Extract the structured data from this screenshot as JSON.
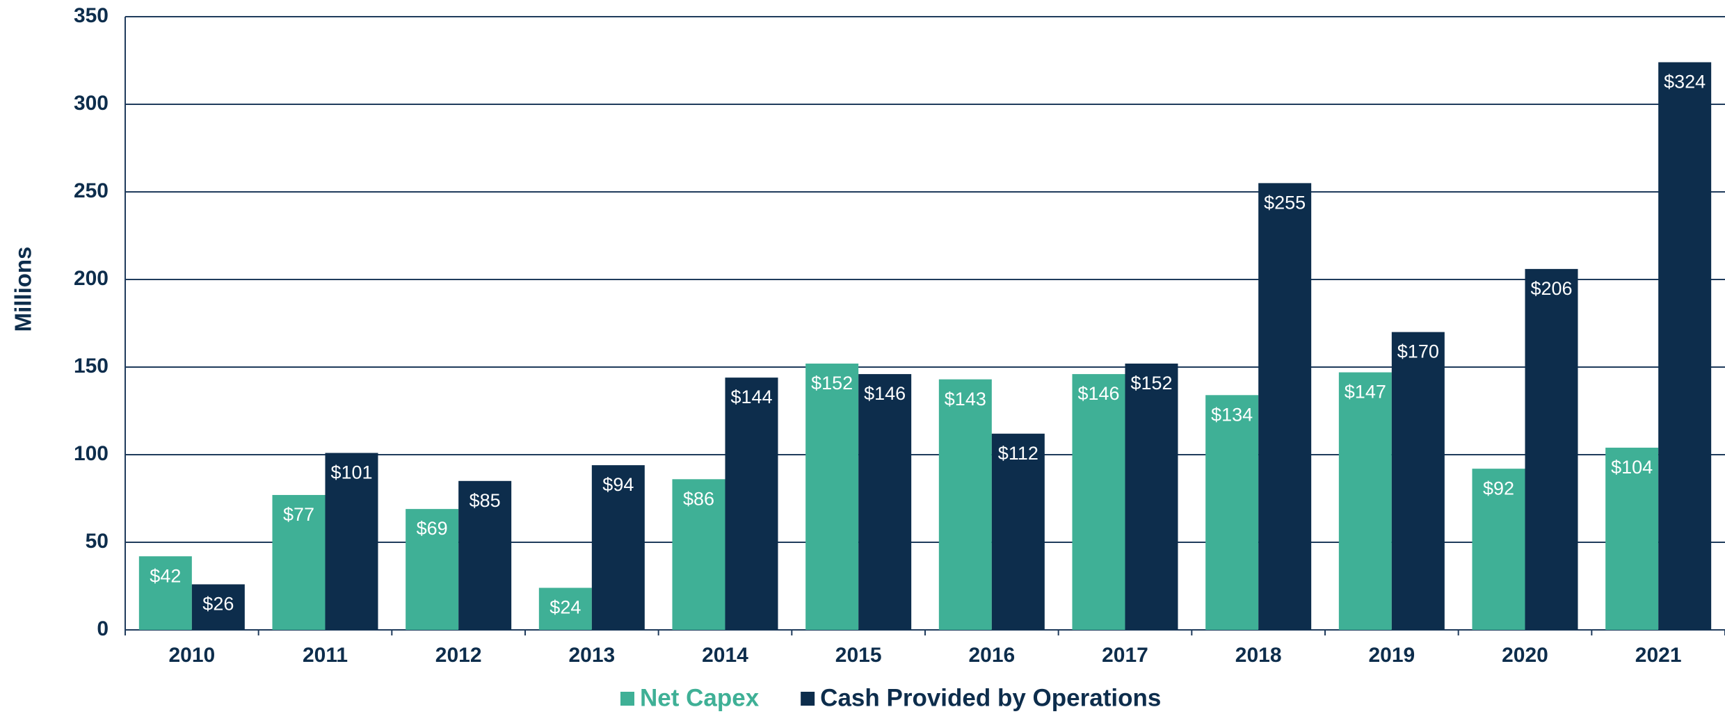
{
  "chart_data": {
    "type": "bar",
    "y_label": "Millions",
    "categories": [
      "2010",
      "2011",
      "2012",
      "2013",
      "2014",
      "2015",
      "2016",
      "2017",
      "2018",
      "2019",
      "2020",
      "2021"
    ],
    "series": [
      {
        "name": "Net Capex",
        "color": "#3fb096",
        "values": [
          42,
          77,
          69,
          24,
          86,
          152,
          143,
          146,
          134,
          147,
          92,
          104
        ],
        "value_labels": [
          "$42",
          "$77",
          "$69",
          "$24",
          "$86",
          "$152",
          "$143",
          "$146",
          "$134",
          "$147",
          "$92",
          "$104"
        ]
      },
      {
        "name": "Cash Provided by Operations",
        "color": "#0d2d4c",
        "values": [
          26,
          101,
          85,
          94,
          144,
          146,
          112,
          152,
          255,
          170,
          206,
          324
        ],
        "value_labels": [
          "$26",
          "$101",
          "$85",
          "$94",
          "$144",
          "$146",
          "$112",
          "$152",
          "$255",
          "$170",
          "$206",
          "$324"
        ]
      }
    ],
    "ylim": [
      0,
      350
    ],
    "yticks": [
      0,
      50,
      100,
      150,
      200,
      250,
      300,
      350
    ],
    "grid": true,
    "legend": "bottom"
  }
}
